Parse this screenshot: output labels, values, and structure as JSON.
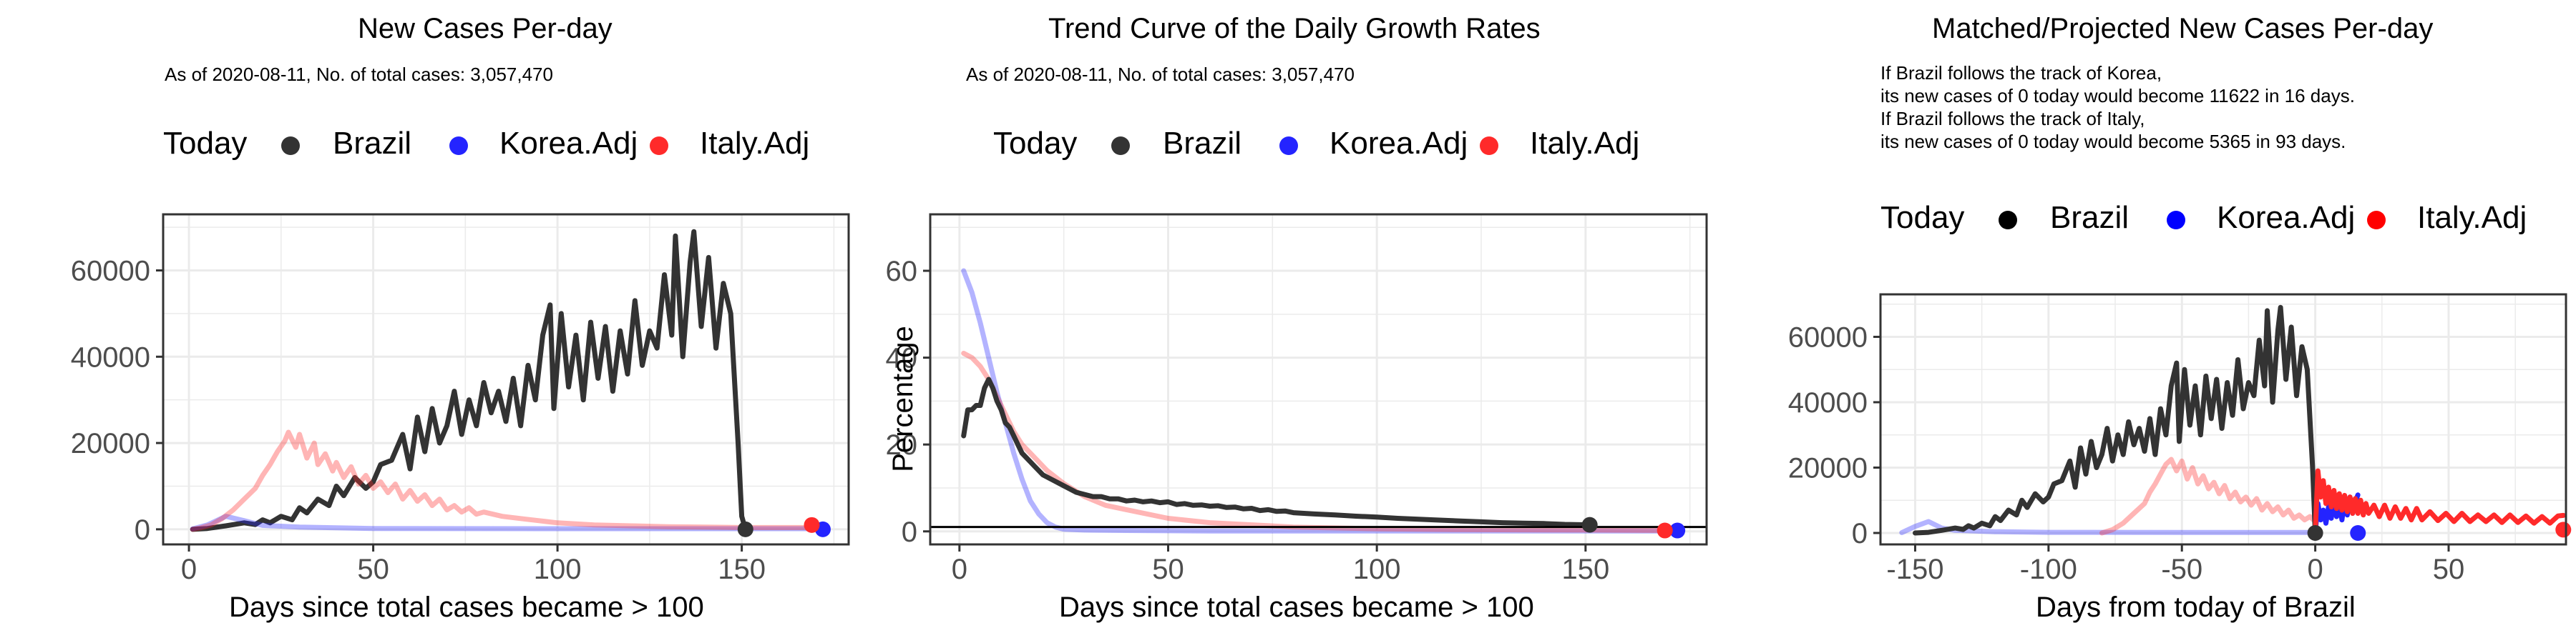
{
  "colors": {
    "brazil": "#333333",
    "korea": "#2424ff",
    "italy": "#ff2a2a",
    "grid": "#ebebeb",
    "frame": "#333333"
  },
  "chart_data": [
    {
      "type": "line",
      "title": "New Cases Per-day",
      "subtitle_lines": [
        "As of 2020-08-11, No. of total cases: 3,057,470"
      ],
      "xlabel": "Days since total cases became > 100",
      "ylabel": "",
      "xlim": [
        -7,
        179
      ],
      "ylim": [
        -3500,
        73000
      ],
      "xticks": [
        0,
        50,
        100,
        150
      ],
      "yticks": [
        0,
        20000,
        40000,
        60000
      ],
      "grid": true,
      "legend": {
        "title": "Today",
        "placement": "top-left",
        "entries": [
          "Brazil",
          "Korea.Adj",
          "Italy.Adj"
        ]
      },
      "series": [
        {
          "name": "Brazil",
          "color": "brazil",
          "opacity": 1.0,
          "width": 7,
          "x": [
            1,
            5,
            10,
            15,
            18,
            20,
            22,
            25,
            28,
            30,
            32,
            35,
            38,
            40,
            42,
            45,
            48,
            50,
            52,
            55,
            58,
            60,
            62,
            64,
            66,
            68,
            70,
            72,
            74,
            76,
            78,
            80,
            82,
            84,
            86,
            88,
            90,
            92,
            94,
            96,
            98,
            99,
            101,
            103,
            105,
            107,
            109,
            111,
            113,
            115,
            117,
            119,
            121,
            123,
            125,
            127,
            129,
            131,
            132,
            134,
            136,
            137,
            139,
            141,
            143,
            145,
            147,
            149,
            150,
            151
          ],
          "y": [
            0,
            200,
            800,
            1500,
            1100,
            2200,
            1500,
            3000,
            2200,
            5000,
            3800,
            7000,
            5500,
            10000,
            7800,
            12000,
            9500,
            11000,
            15000,
            16000,
            22000,
            14000,
            26000,
            18000,
            28000,
            20000,
            24000,
            32000,
            22000,
            30000,
            24000,
            34000,
            27000,
            32000,
            25000,
            35000,
            24000,
            38000,
            30000,
            45000,
            52000,
            28000,
            50000,
            33000,
            45000,
            30000,
            48000,
            35000,
            47000,
            32000,
            46000,
            36000,
            53000,
            38000,
            46000,
            42000,
            59000,
            45000,
            68000,
            40000,
            62000,
            69000,
            47000,
            63000,
            42000,
            57000,
            50000,
            20000,
            3000,
            0
          ]
        },
        {
          "name": "Korea.Adj",
          "color": "korea",
          "opacity": 0.35,
          "width": 7,
          "x": [
            1,
            5,
            10,
            15,
            20,
            30,
            50,
            100,
            150,
            172
          ],
          "y": [
            100,
            1000,
            3000,
            2000,
            900,
            500,
            200,
            150,
            150,
            150
          ]
        },
        {
          "name": "Italy.Adj",
          "color": "italy",
          "opacity": 0.35,
          "width": 7,
          "x": [
            1,
            3,
            6,
            9,
            12,
            15,
            18,
            20,
            22,
            24,
            26,
            27,
            29,
            30,
            32,
            34,
            35,
            37,
            39,
            40,
            42,
            44,
            46,
            48,
            50,
            52,
            54,
            56,
            58,
            60,
            62,
            64,
            66,
            68,
            70,
            72,
            74,
            76,
            78,
            80,
            85,
            90,
            95,
            100,
            110,
            120,
            130,
            140,
            150,
            160,
            169
          ],
          "y": [
            0,
            300,
            1000,
            2500,
            4500,
            7000,
            9500,
            12500,
            15000,
            18000,
            20500,
            22500,
            19000,
            22000,
            16500,
            20000,
            15000,
            17500,
            13500,
            15500,
            12000,
            14500,
            10500,
            12500,
            9500,
            11000,
            8500,
            10500,
            7000,
            9000,
            6500,
            8000,
            5500,
            7000,
            4500,
            5500,
            4000,
            5000,
            3500,
            4000,
            3000,
            2500,
            2000,
            1500,
            1000,
            800,
            600,
            500,
            400,
            400,
            400
          ]
        }
      ],
      "today_markers": [
        {
          "x": 151,
          "y": 0,
          "color": "brazil"
        },
        {
          "x": 172,
          "y": 0,
          "color": "korea"
        },
        {
          "x": 169,
          "y": 1000,
          "color": "italy"
        }
      ]
    },
    {
      "type": "line",
      "title": "Trend Curve of the Daily Growth Rates",
      "subtitle_lines": [
        "As of 2020-08-11, No. of total cases: 3,057,470"
      ],
      "xlabel": "Days since total cases became > 100",
      "ylabel": "Percentage",
      "xlim": [
        -7,
        179
      ],
      "ylim": [
        -3,
        73
      ],
      "xticks": [
        0,
        50,
        100,
        150
      ],
      "yticks": [
        0,
        20,
        40,
        60
      ],
      "hline": 1,
      "grid": true,
      "legend": {
        "title": "Today",
        "placement": "top-left",
        "entries": [
          "Brazil",
          "Korea.Adj",
          "Italy.Adj"
        ]
      },
      "series": [
        {
          "name": "Korea.Adj",
          "color": "korea",
          "opacity": 0.35,
          "width": 7,
          "x": [
            1,
            3,
            5,
            7,
            9,
            11,
            13,
            15,
            17,
            19,
            21,
            23,
            25,
            30,
            40,
            60,
            100,
            150,
            172
          ],
          "y": [
            60,
            55,
            48,
            40,
            32,
            25,
            18,
            12,
            7,
            4,
            2,
            1,
            0.5,
            0.3,
            0.2,
            0.1,
            0.1,
            0.1,
            0.1
          ]
        },
        {
          "name": "Italy.Adj",
          "color": "italy",
          "opacity": 0.35,
          "width": 7,
          "x": [
            1,
            3,
            5,
            7,
            9,
            11,
            13,
            15,
            17,
            19,
            21,
            25,
            30,
            35,
            40,
            50,
            60,
            70,
            80,
            100,
            120,
            150,
            169
          ],
          "y": [
            41,
            40,
            38,
            35,
            31,
            27,
            23,
            20,
            18,
            16,
            14,
            11,
            8,
            6,
            5,
            3,
            2,
            1.5,
            1,
            0.6,
            0.4,
            0.3,
            0.2
          ]
        },
        {
          "name": "Brazil",
          "color": "brazil",
          "opacity": 1.0,
          "width": 7,
          "x": [
            1,
            2,
            3,
            4,
            5,
            6,
            7,
            8,
            9,
            10,
            11,
            12,
            13,
            14,
            15,
            16,
            17,
            18,
            20,
            22,
            24,
            26,
            28,
            30,
            32,
            34,
            36,
            38,
            40,
            42,
            44,
            46,
            48,
            50,
            52,
            54,
            56,
            58,
            60,
            62,
            64,
            66,
            68,
            70,
            72,
            74,
            76,
            78,
            80,
            85,
            90,
            95,
            100,
            105,
            110,
            115,
            120,
            125,
            130,
            135,
            140,
            145,
            151
          ],
          "y": [
            22,
            28,
            28,
            29,
            29,
            33,
            35,
            33,
            30,
            28,
            25,
            24,
            22,
            20,
            18,
            17,
            16,
            15,
            13,
            12,
            11,
            10,
            9,
            8.5,
            8,
            8,
            7.5,
            7.5,
            7,
            7.2,
            6.8,
            7,
            6.6,
            6.8,
            6.2,
            6.4,
            6,
            6.1,
            5.8,
            5.9,
            5.5,
            5.6,
            5.2,
            5.3,
            4.8,
            5,
            4.6,
            4.7,
            4.3,
            4,
            3.8,
            3.5,
            3.3,
            3,
            2.8,
            2.6,
            2.4,
            2.2,
            2,
            1.9,
            1.8,
            1.6,
            1.5
          ]
        }
      ],
      "today_markers": [
        {
          "x": 151,
          "y": 1.5,
          "color": "brazil"
        },
        {
          "x": 172,
          "y": 0.2,
          "color": "korea"
        },
        {
          "x": 169,
          "y": 0.2,
          "color": "italy"
        }
      ]
    },
    {
      "type": "line",
      "title": "Matched/Projected New Cases Per-day",
      "subtitle_lines": [
        "If Brazil follows the track of Korea,",
        "its new cases of 0 today would become 11622 in 16 days.",
        "If Brazil follows the track of Italy,",
        "its new cases of 0 today would become 5365 in 93 days."
      ],
      "xlabel": "Days from today of Brazil",
      "ylabel": "",
      "xlim": [
        -163,
        94
      ],
      "ylim": [
        -3500,
        73000
      ],
      "xticks": [
        -150,
        -100,
        -50,
        0,
        50
      ],
      "yticks": [
        0,
        20000,
        40000,
        60000
      ],
      "grid": true,
      "legend": {
        "title": "Today",
        "placement": "top-left",
        "entries": [
          "Brazil",
          "Korea.Adj",
          "Italy.Adj"
        ]
      },
      "series": [
        {
          "name": "Korea.Adj",
          "color": "korea",
          "opacity": 0.35,
          "width": 7,
          "x": [
            -155,
            -150,
            -145,
            -140,
            -135,
            -120,
            -100,
            -50,
            0
          ],
          "y": [
            100,
            2000,
            3500,
            1500,
            800,
            400,
            200,
            150,
            150
          ]
        },
        {
          "name": "Italy.Adj",
          "color": "italy",
          "opacity": 0.35,
          "width": 7,
          "x": [
            -80,
            -76,
            -72,
            -68,
            -64,
            -62,
            -60,
            -58,
            -56,
            -54,
            -52,
            -50,
            -48,
            -46,
            -44,
            -42,
            -40,
            -38,
            -36,
            -34,
            -32,
            -30,
            -28,
            -26,
            -24,
            -22,
            -20,
            -18,
            -16,
            -14,
            -12,
            -10,
            -8,
            -6,
            -4,
            -2,
            0
          ],
          "y": [
            0,
            1000,
            3000,
            6000,
            9000,
            12500,
            15000,
            18000,
            21000,
            22500,
            19000,
            22000,
            16500,
            20000,
            15000,
            17500,
            13500,
            15500,
            12000,
            14500,
            10500,
            12500,
            9500,
            11000,
            8500,
            10500,
            7000,
            9000,
            6500,
            8000,
            5500,
            7000,
            4500,
            5500,
            4000,
            5000,
            3500
          ]
        },
        {
          "name": "Brazil",
          "color": "brazil",
          "opacity": 1.0,
          "width": 7,
          "x": [
            -150,
            -145,
            -140,
            -135,
            -132,
            -130,
            -128,
            -125,
            -122,
            -120,
            -118,
            -115,
            -112,
            -110,
            -108,
            -105,
            -102,
            -100,
            -98,
            -95,
            -92,
            -90,
            -88,
            -86,
            -84,
            -82,
            -80,
            -78,
            -76,
            -74,
            -72,
            -70,
            -68,
            -66,
            -64,
            -62,
            -60,
            -58,
            -56,
            -54,
            -52,
            -51,
            -49,
            -47,
            -45,
            -43,
            -41,
            -39,
            -37,
            -35,
            -33,
            -31,
            -29,
            -27,
            -25,
            -23,
            -21,
            -19,
            -18,
            -16,
            -14,
            -13,
            -11,
            -9,
            -7,
            -5,
            -3,
            -1,
            0
          ],
          "y": [
            0,
            200,
            800,
            1500,
            1100,
            2200,
            1500,
            3000,
            2200,
            5000,
            3800,
            7000,
            5500,
            10000,
            7800,
            12000,
            9500,
            11000,
            15000,
            16000,
            22000,
            14000,
            26000,
            18000,
            28000,
            20000,
            24000,
            32000,
            22000,
            30000,
            24000,
            34000,
            27000,
            32000,
            25000,
            35000,
            24000,
            38000,
            30000,
            45000,
            52000,
            28000,
            50000,
            33000,
            45000,
            30000,
            48000,
            35000,
            47000,
            32000,
            46000,
            36000,
            53000,
            38000,
            46000,
            42000,
            59000,
            45000,
            68000,
            40000,
            62000,
            69000,
            47000,
            63000,
            42000,
            57000,
            50000,
            20000,
            0
          ]
        },
        {
          "name": "Korea.Adj",
          "color": "korea",
          "opacity": 1.0,
          "width": 7,
          "x": [
            0,
            1,
            2,
            3,
            4,
            5,
            6,
            7,
            8,
            9,
            10,
            11,
            12,
            13,
            14,
            15,
            16
          ],
          "y": [
            0,
            9000,
            4000,
            7000,
            3000,
            8000,
            4500,
            10000,
            5000,
            9000,
            4000,
            10000,
            5500,
            11000,
            6000,
            9500,
            11622
          ]
        },
        {
          "name": "Italy.Adj",
          "color": "italy",
          "opacity": 1.0,
          "width": 7,
          "x": [
            0,
            1,
            2,
            3,
            4,
            5,
            6,
            7,
            8,
            9,
            10,
            11,
            12,
            13,
            14,
            15,
            16,
            17,
            18,
            19,
            20,
            22,
            24,
            26,
            28,
            30,
            32,
            34,
            36,
            38,
            40,
            43,
            46,
            49,
            52,
            55,
            58,
            61,
            64,
            67,
            70,
            73,
            76,
            79,
            82,
            85,
            88,
            91,
            93
          ],
          "y": [
            0,
            19000,
            11000,
            16000,
            9000,
            14000,
            8000,
            13000,
            7500,
            12000,
            7000,
            11500,
            6500,
            11000,
            6000,
            10500,
            6000,
            10000,
            5500,
            9000,
            6000,
            8500,
            5000,
            8500,
            4500,
            8000,
            4500,
            7500,
            4000,
            7500,
            4000,
            6500,
            3800,
            6000,
            3500,
            6000,
            3500,
            5500,
            3500,
            5500,
            3200,
            5500,
            3200,
            5200,
            3000,
            5000,
            3000,
            5200,
            5365
          ]
        }
      ],
      "today_markers": [
        {
          "x": 0,
          "y": 0,
          "color": "brazil"
        },
        {
          "x": 16,
          "y": 0,
          "color": "korea"
        },
        {
          "x": 93,
          "y": 1000,
          "color": "italy"
        }
      ]
    }
  ]
}
